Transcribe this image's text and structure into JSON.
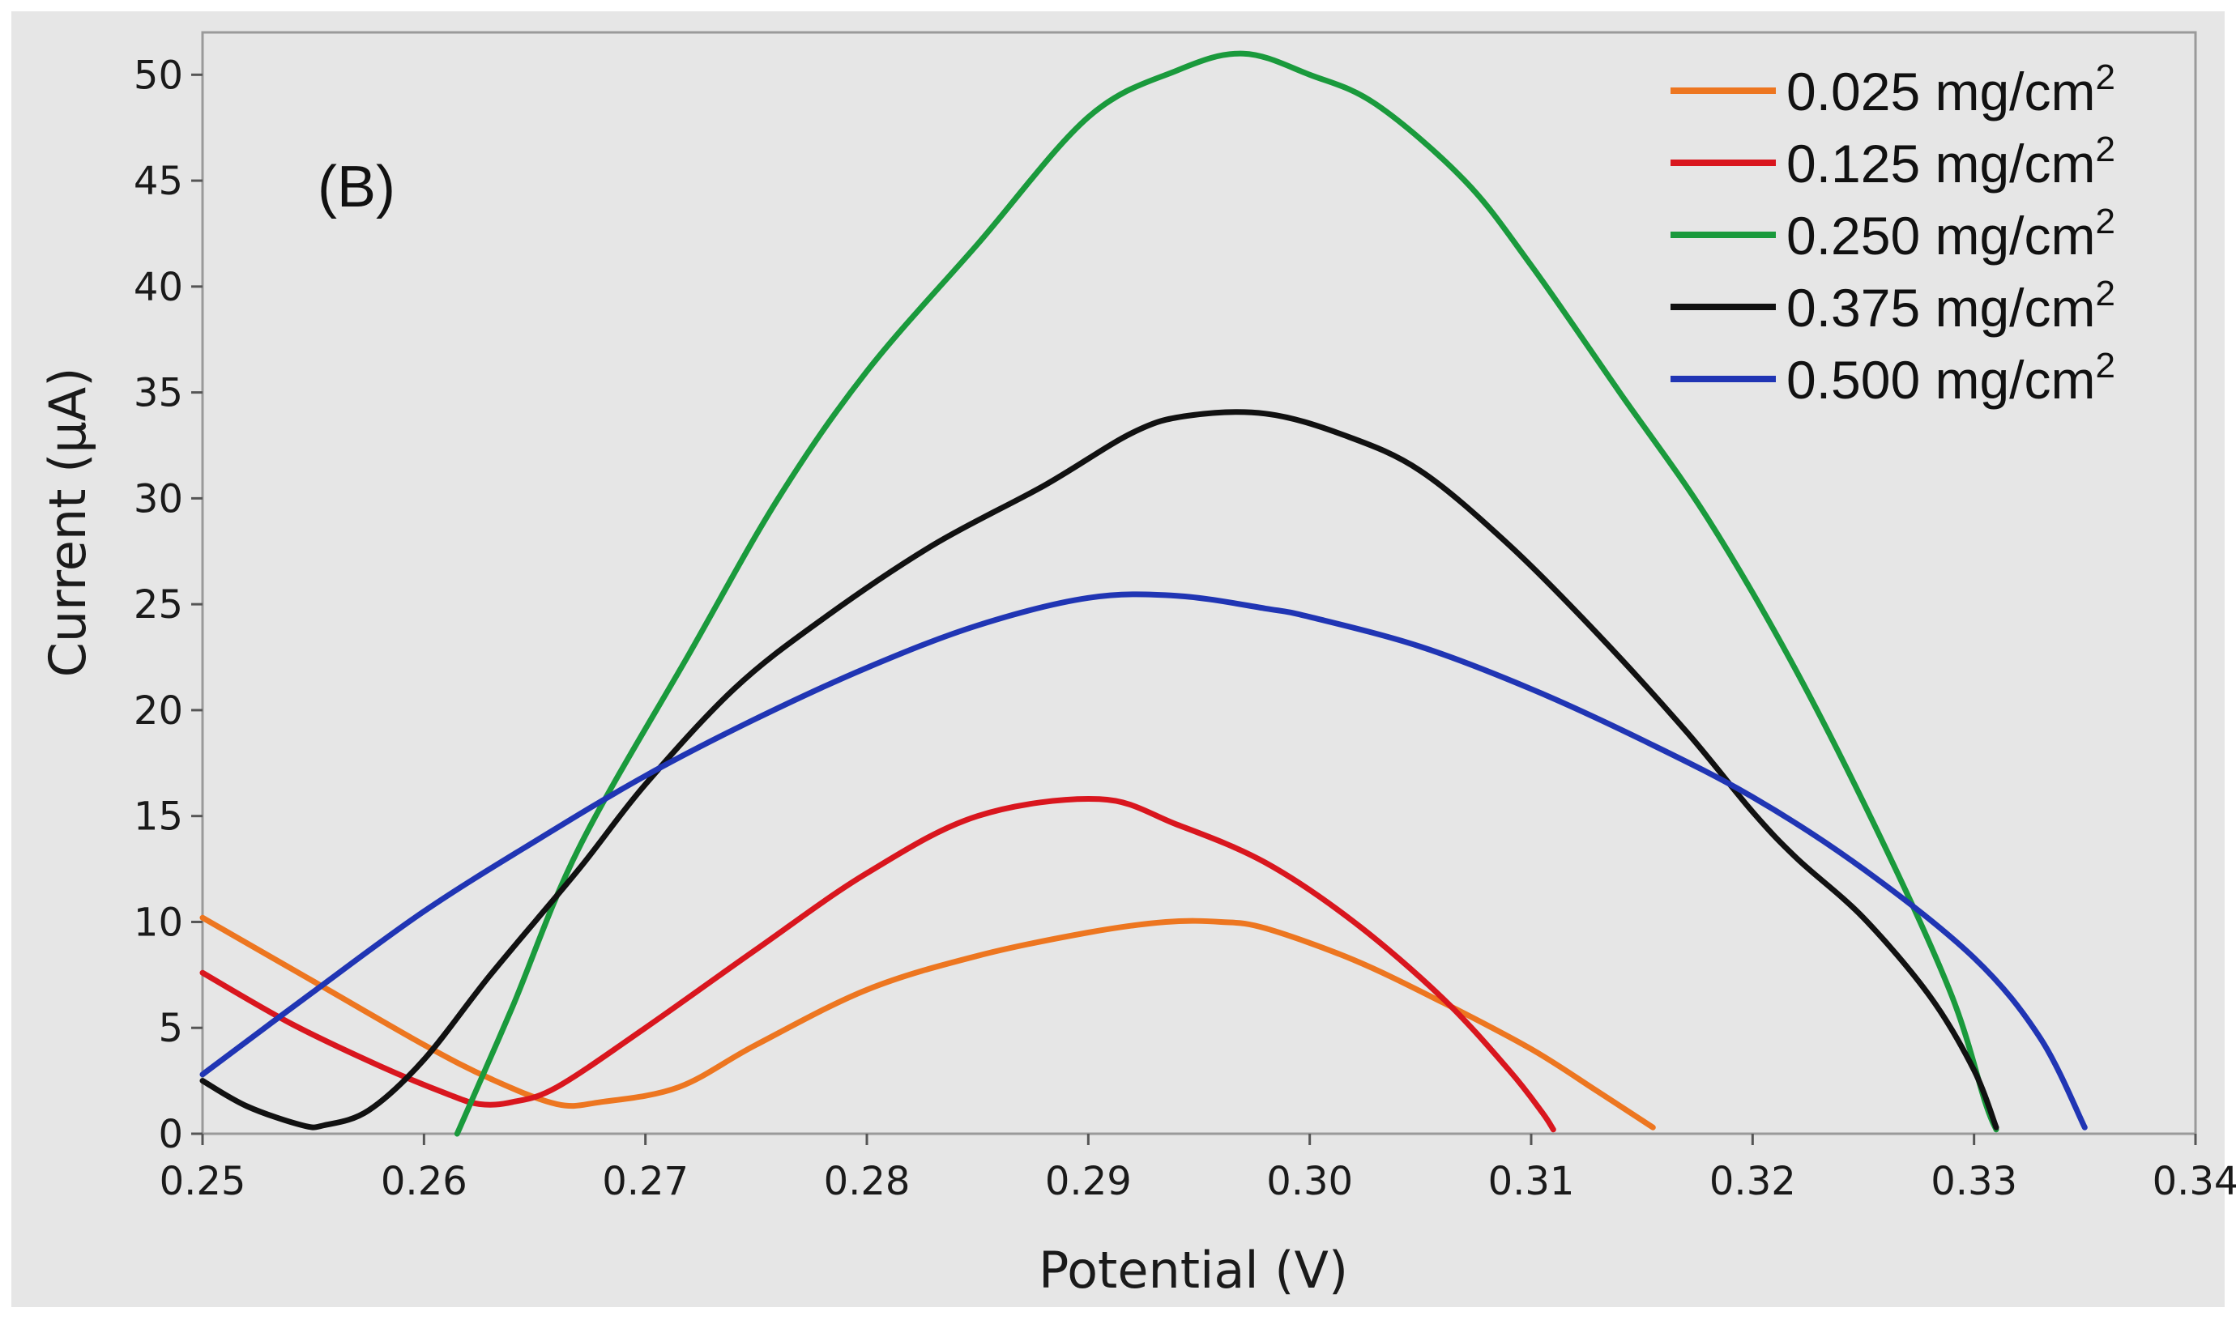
{
  "chart_data": {
    "type": "line",
    "panel_label": "(B)",
    "xlabel": "Potential (V)",
    "ylabel": "Current (μA)",
    "xlim": [
      0.25,
      0.34
    ],
    "ylim": [
      0,
      52
    ],
    "x_ticks": [
      "0.25",
      "0.26",
      "0.27",
      "0.28",
      "0.29",
      "0.30",
      "0.31",
      "0.32",
      "0.33",
      "0.34"
    ],
    "y_ticks": [
      "0",
      "5",
      "10",
      "15",
      "20",
      "25",
      "30",
      "35",
      "40",
      "45",
      "50"
    ],
    "x_tick_values": [
      0.25,
      0.26,
      0.27,
      0.28,
      0.29,
      0.3,
      0.31,
      0.32,
      0.33,
      0.34
    ],
    "y_tick_values": [
      0,
      5,
      10,
      15,
      20,
      25,
      30,
      35,
      40,
      45,
      50
    ],
    "legend_position": "top-right",
    "series": [
      {
        "name": "0.025 mg/cm",
        "unit_sup": "2",
        "color": "#ED7620",
        "points": [
          [
            0.25,
            10.2
          ],
          [
            0.255,
            7.2
          ],
          [
            0.26,
            4.2
          ],
          [
            0.263,
            2.6
          ],
          [
            0.266,
            1.4
          ],
          [
            0.268,
            1.5
          ],
          [
            0.2715,
            2.2
          ],
          [
            0.275,
            4.2
          ],
          [
            0.28,
            6.8
          ],
          [
            0.285,
            8.4
          ],
          [
            0.29,
            9.5
          ],
          [
            0.2935,
            10.0
          ],
          [
            0.296,
            10.0
          ],
          [
            0.298,
            9.7
          ],
          [
            0.302,
            8.2
          ],
          [
            0.306,
            6.2
          ],
          [
            0.31,
            4.0
          ],
          [
            0.313,
            2.0
          ],
          [
            0.3155,
            0.3
          ]
        ]
      },
      {
        "name": "0.125 mg/cm",
        "unit_sup": "2",
        "color": "#D9161E",
        "points": [
          [
            0.25,
            7.6
          ],
          [
            0.254,
            5.2
          ],
          [
            0.258,
            3.2
          ],
          [
            0.261,
            1.9
          ],
          [
            0.2625,
            1.4
          ],
          [
            0.264,
            1.5
          ],
          [
            0.266,
            2.2
          ],
          [
            0.27,
            5.0
          ],
          [
            0.275,
            8.7
          ],
          [
            0.28,
            12.3
          ],
          [
            0.285,
            15.0
          ],
          [
            0.2905,
            15.8
          ],
          [
            0.294,
            14.6
          ],
          [
            0.298,
            12.8
          ],
          [
            0.302,
            10.0
          ],
          [
            0.306,
            6.4
          ],
          [
            0.309,
            3.0
          ],
          [
            0.3105,
            1.0
          ],
          [
            0.311,
            0.2
          ]
        ]
      },
      {
        "name": "0.250 mg/cm",
        "unit_sup": "2",
        "color": "#1A9A3C",
        "points": [
          [
            0.2615,
            0.0
          ],
          [
            0.264,
            6.0
          ],
          [
            0.267,
            13.5
          ],
          [
            0.272,
            22.7
          ],
          [
            0.276,
            30.0
          ],
          [
            0.28,
            36.0
          ],
          [
            0.285,
            42.0
          ],
          [
            0.29,
            48.0
          ],
          [
            0.294,
            50.2
          ],
          [
            0.297,
            51.0
          ],
          [
            0.3,
            50.0
          ],
          [
            0.303,
            48.6
          ],
          [
            0.307,
            45.0
          ],
          [
            0.31,
            41.0
          ],
          [
            0.314,
            35.0
          ],
          [
            0.318,
            29.0
          ],
          [
            0.322,
            21.8
          ],
          [
            0.326,
            13.5
          ],
          [
            0.329,
            6.5
          ],
          [
            0.3305,
            1.5
          ],
          [
            0.331,
            0.2
          ]
        ]
      },
      {
        "name": "0.375 mg/cm",
        "unit_sup": "2",
        "color": "#111111",
        "points": [
          [
            0.25,
            2.5
          ],
          [
            0.252,
            1.3
          ],
          [
            0.2545,
            0.4
          ],
          [
            0.2555,
            0.4
          ],
          [
            0.2575,
            1.1
          ],
          [
            0.26,
            3.5
          ],
          [
            0.263,
            7.5
          ],
          [
            0.267,
            12.5
          ],
          [
            0.27,
            16.5
          ],
          [
            0.274,
            21.0
          ],
          [
            0.278,
            24.3
          ],
          [
            0.283,
            27.8
          ],
          [
            0.288,
            30.6
          ],
          [
            0.292,
            33.1
          ],
          [
            0.2945,
            33.9
          ],
          [
            0.298,
            34.0
          ],
          [
            0.3015,
            33.0
          ],
          [
            0.305,
            31.3
          ],
          [
            0.309,
            27.8
          ],
          [
            0.313,
            23.6
          ],
          [
            0.317,
            19.0
          ],
          [
            0.32,
            15.2
          ],
          [
            0.322,
            13.0
          ],
          [
            0.325,
            10.2
          ],
          [
            0.328,
            6.5
          ],
          [
            0.33,
            3.0
          ],
          [
            0.331,
            0.3
          ]
        ]
      },
      {
        "name": "0.500 mg/cm",
        "unit_sup": "2",
        "color": "#2035B4",
        "points": [
          [
            0.25,
            2.8
          ],
          [
            0.255,
            6.7
          ],
          [
            0.26,
            10.5
          ],
          [
            0.265,
            13.8
          ],
          [
            0.27,
            16.9
          ],
          [
            0.275,
            19.6
          ],
          [
            0.28,
            22.0
          ],
          [
            0.285,
            24.0
          ],
          [
            0.29,
            25.3
          ],
          [
            0.294,
            25.4
          ],
          [
            0.298,
            24.8
          ],
          [
            0.3,
            24.4
          ],
          [
            0.305,
            23.0
          ],
          [
            0.31,
            21.0
          ],
          [
            0.315,
            18.6
          ],
          [
            0.32,
            15.9
          ],
          [
            0.325,
            12.5
          ],
          [
            0.33,
            8.3
          ],
          [
            0.333,
            4.5
          ],
          [
            0.335,
            0.3
          ]
        ]
      }
    ]
  }
}
